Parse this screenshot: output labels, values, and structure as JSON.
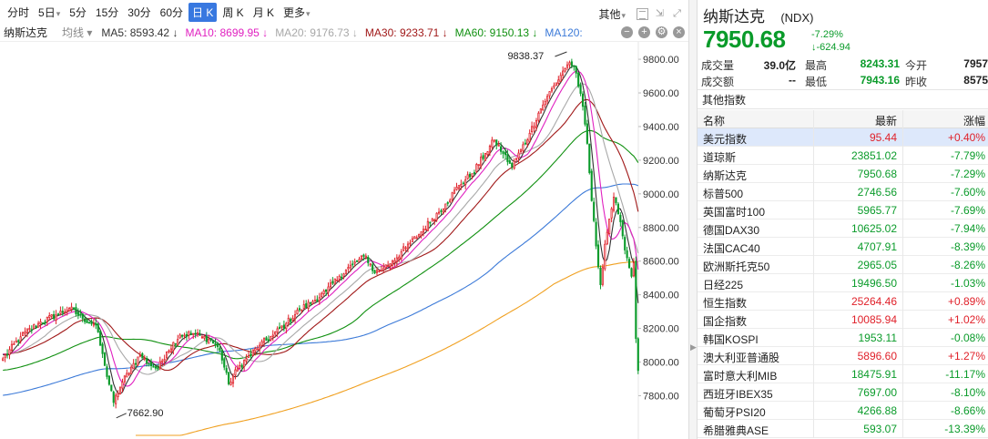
{
  "toolbar": {
    "periods": [
      {
        "label": "分时",
        "caret": false,
        "selected": false
      },
      {
        "label": "5日",
        "caret": true,
        "selected": false
      },
      {
        "label": "5分",
        "caret": false,
        "selected": false
      },
      {
        "label": "15分",
        "caret": false,
        "selected": false
      },
      {
        "label": "30分",
        "caret": false,
        "selected": false
      },
      {
        "label": "60分",
        "caret": false,
        "selected": false
      },
      {
        "label": "日 K",
        "caret": false,
        "selected": true
      },
      {
        "label": "周 K",
        "caret": false,
        "selected": false
      },
      {
        "label": "月 K",
        "caret": false,
        "selected": false
      },
      {
        "label": "更多",
        "caret": true,
        "selected": false
      }
    ],
    "other_label": "其他"
  },
  "ma_bar": {
    "title": "纳斯达克",
    "selector": "均线",
    "items": [
      {
        "label": "MA5: 8593.42 ↓",
        "color": "#333333"
      },
      {
        "label": "MA10: 8699.95 ↓",
        "color": "#e020c0"
      },
      {
        "label": "MA20: 9176.73 ↓",
        "color": "#a8a8a8"
      },
      {
        "label": "MA30: 9233.71 ↓",
        "color": "#a01818"
      },
      {
        "label": "MA60: 9150.13 ↓",
        "color": "#109010"
      },
      {
        "label": "MA120:",
        "color": "#3c7ad8"
      }
    ]
  },
  "colors": {
    "up": "#e0212a",
    "down": "#0a9b2a",
    "ma5": "#333333",
    "ma10": "#e020c0",
    "ma20": "#a8a8a8",
    "ma30": "#a01818",
    "ma60": "#109010",
    "ma120": "#3c7ad8",
    "ma250": "#f0a020",
    "selected": "#3878e0"
  },
  "chart_data": {
    "type": "candlestick",
    "y_ticks": [
      9800,
      9600,
      9400,
      9200,
      9000,
      8800,
      8600,
      8400,
      8200,
      8000,
      7800
    ],
    "y_tick_labels": [
      "9800.00",
      "9600.00",
      "9400.00",
      "9200.00",
      "9000.00",
      "8800.00",
      "8600.00",
      "8400.00",
      "8200.00",
      "8000.00",
      "7800.00"
    ],
    "ylim": [
      7640,
      9860
    ],
    "annotations": [
      {
        "text": "9838.37",
        "value": 9838.37
      },
      {
        "text": "7662.90",
        "value": 7662.9
      }
    ],
    "anchors": [
      [
        0,
        8020
      ],
      [
        8,
        8150
      ],
      [
        16,
        8230
      ],
      [
        24,
        8280
      ],
      [
        30,
        8320
      ],
      [
        36,
        8260
      ],
      [
        42,
        8220
      ],
      [
        46,
        7980
      ],
      [
        50,
        7760
      ],
      [
        54,
        7880
      ],
      [
        58,
        7970
      ],
      [
        62,
        8040
      ],
      [
        66,
        7990
      ],
      [
        70,
        7960
      ],
      [
        74,
        8060
      ],
      [
        80,
        8160
      ],
      [
        86,
        8170
      ],
      [
        90,
        8150
      ],
      [
        94,
        8130
      ],
      [
        98,
        8070
      ],
      [
        102,
        7870
      ],
      [
        106,
        7960
      ],
      [
        110,
        8020
      ],
      [
        116,
        8100
      ],
      [
        122,
        8160
      ],
      [
        128,
        8230
      ],
      [
        134,
        8310
      ],
      [
        140,
        8360
      ],
      [
        146,
        8420
      ],
      [
        152,
        8510
      ],
      [
        158,
        8580
      ],
      [
        164,
        8630
      ],
      [
        168,
        8530
      ],
      [
        172,
        8560
      ],
      [
        176,
        8600
      ],
      [
        182,
        8680
      ],
      [
        188,
        8760
      ],
      [
        194,
        8850
      ],
      [
        200,
        8940
      ],
      [
        206,
        9050
      ],
      [
        212,
        9120
      ],
      [
        218,
        9240
      ],
      [
        222,
        9320
      ],
      [
        226,
        9240
      ],
      [
        230,
        9160
      ],
      [
        234,
        9260
      ],
      [
        238,
        9360
      ],
      [
        242,
        9480
      ],
      [
        246,
        9580
      ],
      [
        250,
        9660
      ],
      [
        253,
        9730
      ],
      [
        256,
        9780
      ],
      [
        258,
        9760
      ],
      [
        260,
        9640
      ],
      [
        262,
        9520
      ],
      [
        264,
        9300
      ],
      [
        266,
        8960
      ],
      [
        268,
        8690
      ],
      [
        270,
        8460
      ],
      [
        272,
        8700
      ],
      [
        274,
        8850
      ],
      [
        276,
        8980
      ],
      [
        278,
        8880
      ],
      [
        280,
        8750
      ],
      [
        282,
        8620
      ],
      [
        284,
        8510
      ],
      [
        285,
        8590
      ],
      [
        286,
        8140
      ],
      [
        287,
        7950
      ]
    ]
  },
  "quote": {
    "name": "纳斯达克",
    "code": "(NDX)",
    "price": "7950.68",
    "change_pct": "-7.29%",
    "change_abs": "↓-624.94",
    "stats": [
      {
        "label": "成交量",
        "value": "39.0亿",
        "label2": "最高",
        "value2": "8243.31",
        "label3": "今开",
        "value3": "7957"
      },
      {
        "label": "成交额",
        "value": "--",
        "label2": "最低",
        "value2": "7943.16",
        "label3": "昨收",
        "value3": "8575"
      }
    ],
    "other_title": "其他指数",
    "table_headers": [
      "名称",
      "最新",
      "涨幅"
    ],
    "rows": [
      {
        "name": "美元指数",
        "last": "95.44",
        "pct": "+0.40%",
        "dir": "up",
        "highlight": true
      },
      {
        "name": "道琼斯",
        "last": "23851.02",
        "pct": "-7.79%",
        "dir": "down"
      },
      {
        "name": "纳斯达克",
        "last": "7950.68",
        "pct": "-7.29%",
        "dir": "down"
      },
      {
        "name": "标普500",
        "last": "2746.56",
        "pct": "-7.60%",
        "dir": "down"
      },
      {
        "name": "英国富时100",
        "last": "5965.77",
        "pct": "-7.69%",
        "dir": "down"
      },
      {
        "name": "德国DAX30",
        "last": "10625.02",
        "pct": "-7.94%",
        "dir": "down"
      },
      {
        "name": "法国CAC40",
        "last": "4707.91",
        "pct": "-8.39%",
        "dir": "down"
      },
      {
        "name": "欧洲斯托克50",
        "last": "2965.05",
        "pct": "-8.26%",
        "dir": "down"
      },
      {
        "name": "日经225",
        "last": "19496.50",
        "pct": "-1.03%",
        "dir": "down"
      },
      {
        "name": "恒生指数",
        "last": "25264.46",
        "pct": "+0.89%",
        "dir": "up"
      },
      {
        "name": "国企指数",
        "last": "10085.94",
        "pct": "+1.02%",
        "dir": "up"
      },
      {
        "name": "韩国KOSPI",
        "last": "1953.11",
        "pct": "-0.08%",
        "dir": "down"
      },
      {
        "name": "澳大利亚普通股",
        "last": "5896.60",
        "pct": "+1.27%",
        "dir": "up"
      },
      {
        "name": "富时意大利MIB",
        "last": "18475.91",
        "pct": "-11.17%",
        "dir": "down"
      },
      {
        "name": "西班牙IBEX35",
        "last": "7697.00",
        "pct": "-8.10%",
        "dir": "down"
      },
      {
        "name": "葡萄牙PSI20",
        "last": "4266.88",
        "pct": "-8.66%",
        "dir": "down"
      },
      {
        "name": "希腊雅典ASE",
        "last": "593.07",
        "pct": "-13.39%",
        "dir": "down"
      }
    ]
  }
}
